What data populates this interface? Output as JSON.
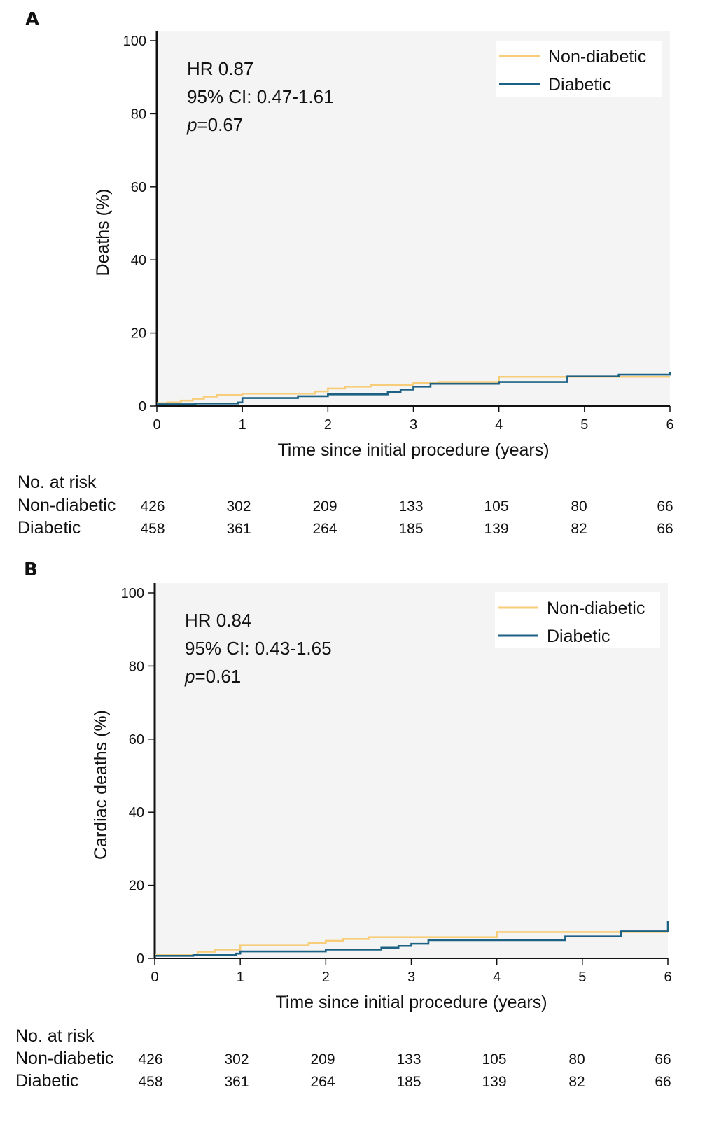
{
  "chart_data": [
    {
      "type": "line",
      "panel": "A",
      "ylabel": "Deaths (%)",
      "xlabel": "Time since initial procedure (years)",
      "xlim": [
        0,
        6
      ],
      "ylim": [
        0,
        100
      ],
      "xticks": [
        0,
        1,
        2,
        3,
        4,
        5,
        6
      ],
      "yticks": [
        0,
        20,
        40,
        60,
        80,
        100
      ],
      "annotation": {
        "hr": "HR 0.87",
        "ci": "95% CI: 0.47-1.61",
        "p_italic": "p",
        "p_rest": "=0.67"
      },
      "legend_position": "top-right",
      "series": [
        {
          "name": "Non-diabetic",
          "color": "#F7CD7A",
          "x": [
            0,
            0.12,
            0.28,
            0.42,
            0.55,
            0.7,
            1.0,
            1.65,
            1.85,
            2.0,
            2.2,
            2.5,
            2.75,
            3.0,
            3.3,
            4.0,
            4.8,
            6.0
          ],
          "y": [
            0.8,
            1.0,
            1.5,
            2.0,
            2.6,
            3.0,
            3.4,
            3.4,
            4.0,
            4.8,
            5.3,
            5.7,
            5.8,
            6.3,
            6.6,
            8.0,
            8.0,
            8.0
          ]
        },
        {
          "name": "Diabetic",
          "color": "#1D6285",
          "x": [
            0,
            0.45,
            0.95,
            1.0,
            1.65,
            2.0,
            2.7,
            2.85,
            3.0,
            3.2,
            4.0,
            4.8,
            5.4,
            6.0
          ],
          "y": [
            0.5,
            0.7,
            1.0,
            2.2,
            2.7,
            3.2,
            3.9,
            4.5,
            5.3,
            6.1,
            6.6,
            8.1,
            8.6,
            9.2
          ]
        }
      ],
      "risk_table": {
        "title": "No. at risk",
        "rows": [
          {
            "label": "Non-diabetic",
            "values": [
              "426",
              "302",
              "209",
              "133",
              "105",
              "80",
              "66"
            ]
          },
          {
            "label": "Diabetic",
            "values": [
              "458",
              "361",
              "264",
              "185",
              "139",
              "82",
              "66"
            ]
          }
        ]
      }
    },
    {
      "type": "line",
      "panel": "B",
      "ylabel": "Cardiac deaths (%)",
      "xlabel": "Time since initial procedure (years)",
      "xlim": [
        0,
        6
      ],
      "ylim": [
        0,
        100
      ],
      "xticks": [
        0,
        1,
        2,
        3,
        4,
        5,
        6
      ],
      "yticks": [
        0,
        20,
        40,
        60,
        80,
        100
      ],
      "annotation": {
        "hr": "HR 0.84",
        "ci": "95% CI: 0.43-1.65",
        "p_italic": "p",
        "p_rest": "=0.61"
      },
      "legend_position": "top-right",
      "series": [
        {
          "name": "Non-diabetic",
          "color": "#F7CD7A",
          "x": [
            0,
            0.5,
            0.7,
            1.0,
            1.8,
            2.0,
            2.2,
            2.5,
            3.0,
            4.0,
            5.0,
            6.0
          ],
          "y": [
            0.9,
            1.8,
            2.4,
            3.5,
            4.2,
            4.8,
            5.3,
            5.8,
            5.8,
            7.2,
            7.2,
            7.2
          ]
        },
        {
          "name": "Diabetic",
          "color": "#1D6285",
          "x": [
            0,
            0.45,
            0.95,
            1.0,
            2.0,
            2.65,
            2.85,
            3.0,
            3.2,
            4.0,
            4.8,
            5.45,
            6.0,
            6.0
          ],
          "y": [
            0.7,
            0.9,
            1.3,
            1.9,
            2.4,
            2.9,
            3.4,
            4.0,
            5.0,
            5.0,
            6.0,
            7.4,
            7.4,
            10.3
          ]
        }
      ],
      "risk_table": {
        "title": "No. at risk",
        "rows": [
          {
            "label": "Non-diabetic",
            "values": [
              "426",
              "302",
              "209",
              "133",
              "105",
              "80",
              "66"
            ]
          },
          {
            "label": "Diabetic",
            "values": [
              "458",
              "361",
              "264",
              "185",
              "139",
              "82",
              "66"
            ]
          }
        ]
      }
    }
  ]
}
